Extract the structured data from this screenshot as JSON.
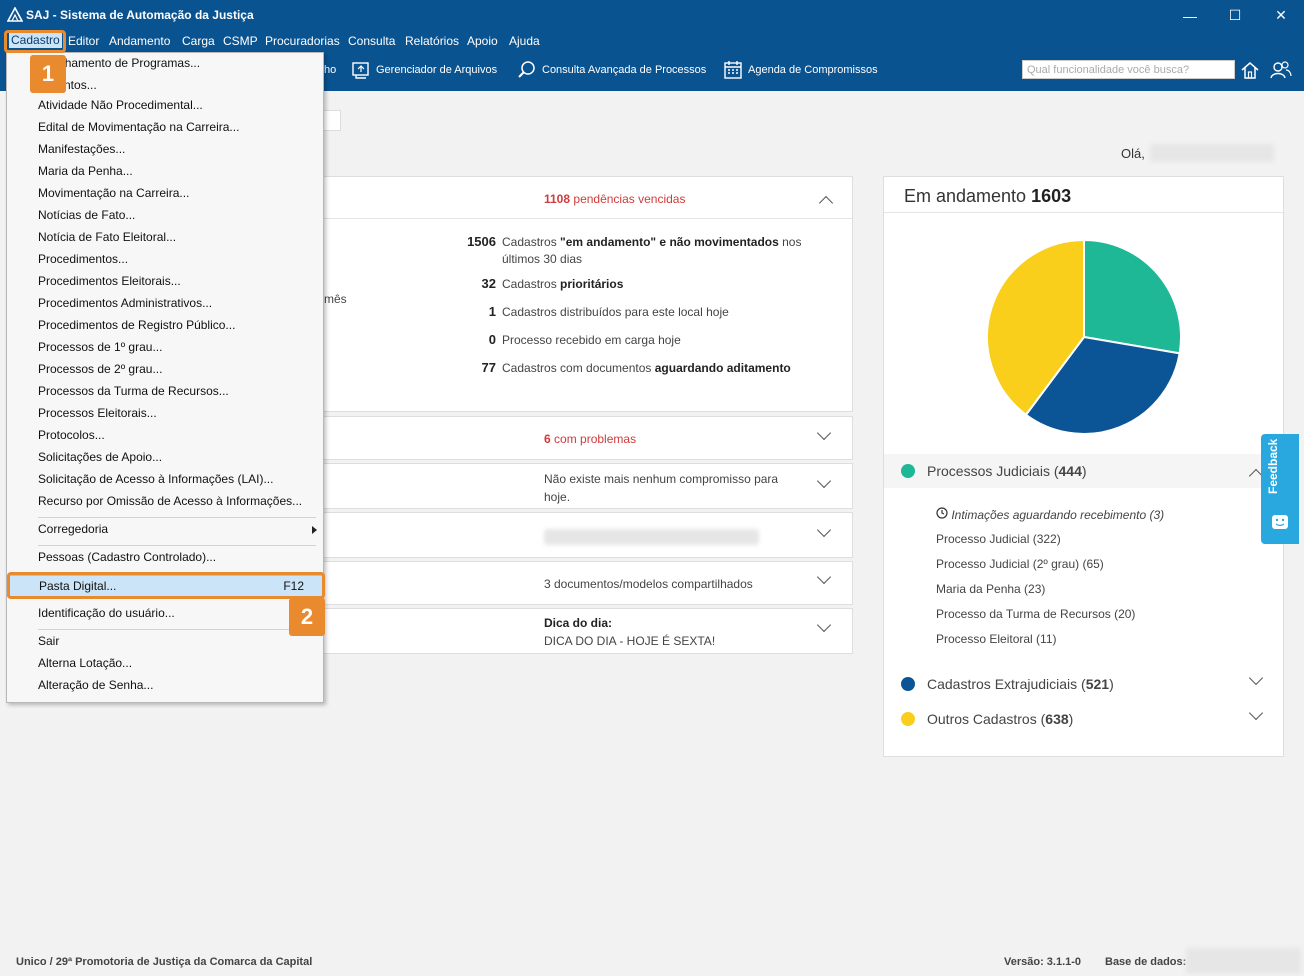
{
  "window": {
    "title": "SAJ - Sistema de Automação da Justiça",
    "minimize": "—",
    "maximize": "☐",
    "close": "✕"
  },
  "menubar": [
    "Cadastro",
    "Editor",
    "Andamento",
    "Carga",
    "CSMP",
    "Procuradorias",
    "Consulta",
    "Relatórios",
    "Apoio",
    "Ajuda"
  ],
  "toolbar": {
    "partial_item": "ho",
    "items": [
      "Gerenciador de Arquivos",
      "Consulta Avançada de Processos",
      "Agenda de Compromissos"
    ],
    "search_placeholder": "Qual funcionalidade você busca?"
  },
  "greeting": "Olá,",
  "dropdown": {
    "items": [
      "npanhamento de Programas...",
      "dimentos...",
      "Atividade Não Procedimental...",
      "Edital de Movimentação na Carreira...",
      "Manifestações...",
      "Maria da Penha...",
      "Movimentação na Carreira...",
      "Notícias de Fato...",
      "Notícia de Fato Eleitoral...",
      "Procedimentos...",
      "Procedimentos Eleitorais...",
      "Procedimentos Administrativos...",
      "Procedimentos de Registro Público...",
      "Processos de 1º grau...",
      "Processos de 2º grau...",
      "Processos da Turma de Recursos...",
      "Processos Eleitorais...",
      "Protocolos...",
      "Solicitações de Apoio...",
      "Solicitação de Acesso à Informações (LAI)...",
      "Recurso por Omissão de Acesso à Informações..."
    ],
    "corregedoria": "Corregedoria",
    "pessoas": "Pessoas (Cadastro Controlado)...",
    "pasta_digital": "Pasta Digital...",
    "pasta_shortcut": "F12",
    "identificacao": "Identificação do usuário...",
    "sair": "Sair",
    "alterna": "Alterna Lotação...",
    "alteracao": "Alteração de Senha..."
  },
  "callouts": {
    "one": "1",
    "two": "2"
  },
  "main_panel": {
    "partial_mes": "mês",
    "overdue_count": "1108",
    "overdue_text": "pendências vencidas",
    "stats": [
      {
        "num": "1506",
        "pre": "Cadastros ",
        "bold": "\"em andamento\" e não movimentados",
        "post": " nos últimos 30 dias"
      },
      {
        "num": "32",
        "pre": "Cadastros ",
        "bold": "prioritários",
        "post": ""
      },
      {
        "num": "1",
        "pre": "Cadastros distribuídos para este local hoje",
        "bold": "",
        "post": ""
      },
      {
        "num": "0",
        "pre": "Processo recebido em carga hoje",
        "bold": "",
        "post": ""
      },
      {
        "num": "77",
        "pre": "Cadastros com documentos ",
        "bold": "aguardando aditamento",
        "post": ""
      }
    ]
  },
  "rows": {
    "problems_count": "6",
    "problems_text": "com problemas",
    "no_appointments": "Não existe mais nenhum compromisso para hoje.",
    "shared_docs": "3 documentos/modelos compartilhados",
    "tip_title": "Dica do dia:",
    "tip_text": "DICA DO DIA - HOJE É SEXTA!"
  },
  "pie_panel": {
    "title": "Em andamento",
    "total": "1603",
    "legend": [
      {
        "label": "Processos Judiciais",
        "count": "444",
        "color": "#1fb896"
      },
      {
        "label": "Cadastros Extrajudiciais",
        "count": "521",
        "color": "#0b5596"
      },
      {
        "label": "Outros Cadastros",
        "count": "638",
        "color": "#f9cf1c"
      }
    ],
    "sub_items": [
      "Intimações aguardando recebimento (3)",
      "Processo Judicial (322)",
      "Processo Judicial (2º grau) (65)",
      "Maria da Penha (23)",
      "Processo da Turma de Recursos (20)",
      "Processo Eleitoral (11)"
    ]
  },
  "feedback": "Feedback",
  "statusbar": {
    "location": "Unico / 29ª Promotoria de Justiça da Comarca da Capital",
    "version": "Versão: 3.1.1-0",
    "database": "Base de dados:"
  }
}
